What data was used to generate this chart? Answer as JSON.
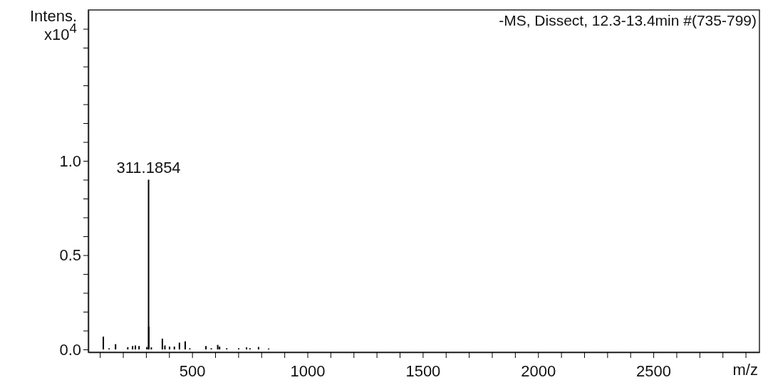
{
  "chart_data": {
    "type": "bar",
    "title": "-MS, Dissect, 12.3-13.4min #(735-799)",
    "xlabel": "m/z",
    "ylabel": "Intens. x10$^{4}$",
    "x": [
      115,
      140,
      168,
      221,
      242,
      254,
      270,
      304,
      311.1854,
      312,
      323,
      371,
      382,
      402,
      423,
      445,
      470,
      490,
      560,
      583,
      611,
      619,
      650,
      702,
      736,
      751,
      788,
      832
    ],
    "values": [
      0.068,
      0.006,
      0.028,
      0.012,
      0.018,
      0.021,
      0.018,
      0.013,
      0.9,
      0.12,
      0.011,
      0.057,
      0.021,
      0.015,
      0.015,
      0.036,
      0.043,
      0.006,
      0.018,
      0.006,
      0.024,
      0.015,
      0.006,
      0.006,
      0.011,
      0.006,
      0.013,
      0.005
    ],
    "color": "#000000",
    "annotations": [
      {
        "text": "311.1854",
        "x": 311.1854,
        "y": 0.9
      }
    ],
    "xlim": [
      50,
      2960
    ],
    "ylim": [
      -0.015,
      1.8
    ],
    "xticks": [
      {
        "value": 100,
        "label": null
      },
      {
        "value": 200,
        "label": null
      },
      {
        "value": 300,
        "label": null
      },
      {
        "value": 400,
        "label": null
      },
      500,
      {
        "value": 600,
        "label": null
      },
      {
        "value": 700,
        "label": null
      },
      {
        "value": 800,
        "label": null
      },
      {
        "value": 900,
        "label": null
      },
      1000,
      {
        "value": 1100,
        "label": null
      },
      {
        "value": 1200,
        "label": null
      },
      {
        "value": 1300,
        "label": null
      },
      {
        "value": 1400,
        "label": null
      },
      1500,
      {
        "value": 1600,
        "label": null
      },
      {
        "value": 1700,
        "label": null
      },
      {
        "value": 1800,
        "label": null
      },
      {
        "value": 1900,
        "label": null
      },
      2000,
      {
        "value": 2100,
        "label": null
      },
      {
        "value": 2200,
        "label": null
      },
      {
        "value": 2300,
        "label": null
      },
      {
        "value": 2400,
        "label": null
      },
      2500,
      {
        "value": 2600,
        "label": null
      },
      {
        "value": 2700,
        "label": null
      },
      {
        "value": 2800,
        "label": null
      },
      {
        "value": 2900,
        "label": null
      }
    ],
    "yticks": [
      {
        "value": 0,
        "label": "0.0"
      },
      {
        "value": 0.1,
        "label": null
      },
      {
        "value": 0.2,
        "label": null
      },
      {
        "value": 0.3,
        "label": null
      },
      {
        "value": 0.4,
        "label": null
      },
      {
        "value": 0.5,
        "label": "0.5"
      },
      {
        "value": 0.6,
        "label": null
      },
      {
        "value": 0.7,
        "label": null
      },
      {
        "value": 0.8,
        "label": null
      },
      {
        "value": 0.9,
        "label": null
      },
      {
        "value": 1.0,
        "label": "1.0"
      },
      {
        "value": 1.1,
        "label": null
      },
      {
        "value": 1.2,
        "label": null
      },
      {
        "value": 1.3,
        "label": null
      },
      {
        "value": 1.4,
        "label": null
      },
      {
        "value": 1.5,
        "label": null
      },
      {
        "value": 1.6,
        "label": null
      },
      {
        "value": 1.7,
        "label": null
      }
    ]
  }
}
